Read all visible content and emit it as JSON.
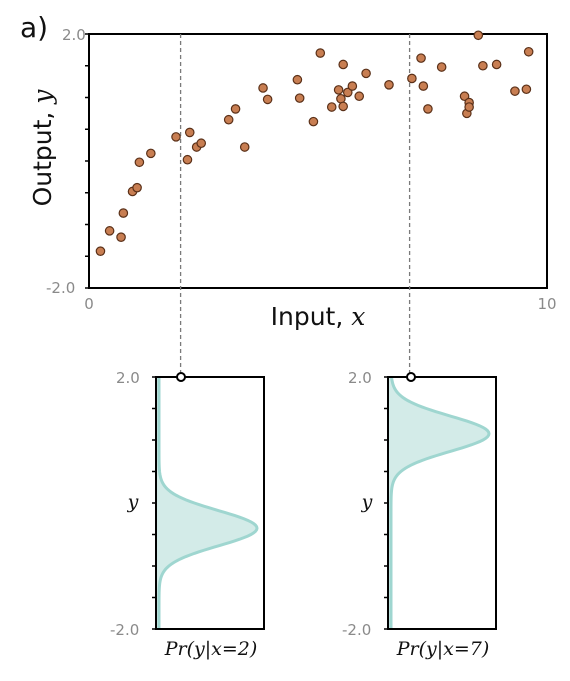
{
  "panel_label": "a)",
  "chart_data": [
    {
      "type": "scatter",
      "xlabel": "Input, ",
      "xlabel_var": "x",
      "ylabel": "Output, ",
      "ylabel_var": "y",
      "xlim": [
        0,
        10
      ],
      "ylim": [
        -2.0,
        2.0
      ],
      "xticklabels": [
        "0",
        "10"
      ],
      "yticklabels": [
        "2.0",
        "-2.0"
      ],
      "guides_at_x": [
        2,
        7
      ],
      "x": [
        0.25,
        0.45,
        0.7,
        0.75,
        0.95,
        1.05,
        1.1,
        1.35,
        1.9,
        2.15,
        2.2,
        2.35,
        2.45,
        3.05,
        3.2,
        3.4,
        3.8,
        3.9,
        4.55,
        4.6,
        4.9,
        5.05,
        5.3,
        5.45,
        5.5,
        5.55,
        5.55,
        5.65,
        5.75,
        5.9,
        6.05,
        6.55,
        7.05,
        7.25,
        7.3,
        7.4,
        7.7,
        8.2,
        8.25,
        8.3,
        8.3,
        8.5,
        8.6,
        8.9,
        9.3,
        9.55,
        9.6
      ],
      "y": [
        -1.42,
        -1.1,
        -1.2,
        -0.82,
        -0.48,
        -0.42,
        -0.02,
        0.12,
        0.38,
        0.02,
        0.45,
        0.22,
        0.28,
        0.65,
        0.82,
        0.22,
        1.15,
        0.97,
        1.28,
        0.99,
        0.62,
        1.7,
        0.85,
        1.12,
        0.98,
        0.86,
        1.52,
        1.08,
        1.18,
        1.02,
        1.38,
        1.2,
        1.3,
        1.62,
        1.18,
        0.82,
        1.48,
        1.02,
        0.75,
        0.92,
        0.85,
        1.98,
        1.5,
        1.52,
        1.1,
        1.13,
        1.72
      ]
    },
    {
      "type": "area",
      "title": "Pr(y|x=2)",
      "ylabel": "y",
      "ylim": [
        -2.0,
        2.0
      ],
      "yticklabels": [
        "2.0",
        "-2.0"
      ],
      "mean": -0.4,
      "sd": 0.28
    },
    {
      "type": "area",
      "title": "Pr(y|x=7)",
      "ylabel": "y",
      "ylim": [
        -2.0,
        2.0
      ],
      "yticklabels": [
        "2.0",
        "-2.0"
      ],
      "mean": 1.1,
      "sd": 0.28
    }
  ],
  "colors": {
    "point_fill": "#c87e52",
    "point_stroke": "#5a3018",
    "dist_fill": "#d3ebe8",
    "dist_line": "#9fd6d0"
  }
}
